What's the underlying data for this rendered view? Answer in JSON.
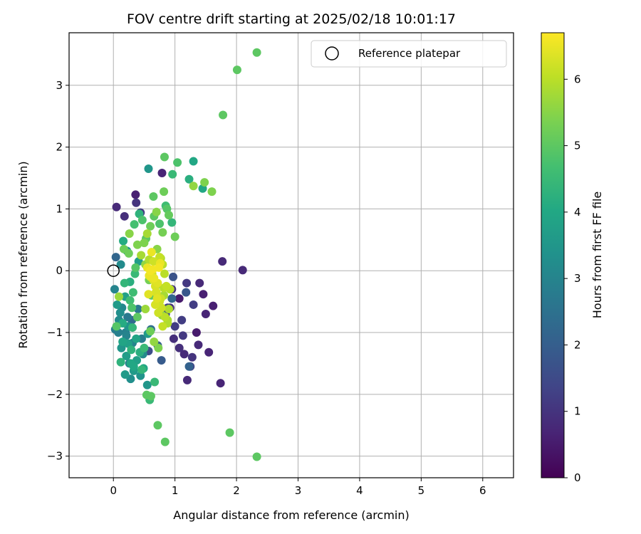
{
  "chart_data": {
    "type": "scatter",
    "title": "FOV centre drift starting at 2025/02/18 10:01:17",
    "xlabel": "Angular distance from reference (arcmin)",
    "ylabel": "Rotation from reference (arcmin)",
    "xlim": [
      -0.72,
      6.5
    ],
    "ylim": [
      -3.35,
      3.85
    ],
    "xticks": [
      0,
      1,
      2,
      3,
      4,
      5,
      6
    ],
    "yticks": [
      -3,
      -2,
      -1,
      0,
      1,
      2,
      3
    ],
    "grid": true,
    "legend": {
      "position": "top-right",
      "entries": [
        "Reference platepar"
      ]
    },
    "colorbar": {
      "label": "Hours from first FF file",
      "colormap": "viridis",
      "range": [
        0,
        6.7
      ],
      "ticks": [
        0,
        1,
        2,
        3,
        4,
        5,
        6
      ]
    },
    "reference_point": {
      "x": 0,
      "y": 0
    },
    "series": [
      {
        "x": [
          2.33,
          2.01,
          1.78,
          0.83,
          1.3,
          1.04,
          0.96,
          0.57,
          0.61,
          1.48,
          1.23,
          1.3,
          1.6,
          1.45,
          0.65,
          0.87,
          0.82,
          1.89,
          2.33,
          0.72,
          0.84,
          0.54,
          0.59,
          0.67,
          0.05,
          0.18,
          0.36,
          0.37,
          0.44,
          0.79,
          1.77,
          2.1,
          1.74,
          1.2,
          1.25,
          0.95,
          1.07,
          1.4,
          1.46,
          1.5,
          0.92,
          1.0,
          1.35,
          1.38,
          1.55,
          1.62,
          1.15,
          1.28,
          0.98,
          1.11,
          1.19,
          0.3,
          0.46,
          0.57,
          0.78,
          0.26,
          0.48,
          0.4,
          0.61,
          0.72,
          0.2,
          0.31,
          0.85,
          0.95,
          1.18,
          1.23,
          1.07,
          1.13,
          0.88,
          0.97,
          1.3,
          0.04,
          0.02,
          0.06,
          0.09,
          0.03,
          0.13,
          0.15,
          0.21,
          0.24,
          0.28,
          0.33,
          0.11,
          0.19,
          0.27,
          0.35,
          0.41,
          0.16,
          0.22,
          0.08,
          0.14,
          0.29,
          0.38,
          0.44,
          0.49,
          0.32,
          0.36,
          0.25,
          0.18,
          0.12,
          0.23,
          0.17,
          0.26,
          0.34,
          0.42,
          0.47,
          0.53,
          0.39,
          0.45,
          0.52,
          0.58,
          0.62,
          0.27,
          0.31,
          0.37,
          0.43,
          0.21,
          0.3,
          0.39,
          0.5,
          0.56,
          0.09,
          0.15,
          0.24,
          0.33,
          0.46,
          0.55,
          0.05,
          0.12,
          0.19,
          0.28,
          0.5,
          0.55,
          0.6,
          0.66,
          0.7,
          0.75,
          0.8,
          0.85,
          0.9,
          0.95,
          1.0,
          0.58,
          0.63,
          0.69,
          0.74,
          0.79,
          0.88,
          0.52,
          0.71,
          0.77,
          0.6,
          0.66,
          0.82,
          0.92,
          0.73,
          0.55,
          0.6,
          0.65,
          0.7,
          0.75,
          0.8,
          0.68,
          0.72,
          0.77,
          0.62,
          0.83,
          0.74,
          0.65,
          0.86,
          0.58,
          0.69,
          0.78,
          0.64,
          0.71,
          0.82,
          0.76,
          0.6,
          0.68,
          0.75,
          0.84,
          0.9,
          0.57,
          0.66,
          0.73,
          0.8,
          0.88
        ],
        "y": [
          3.53,
          3.25,
          2.52,
          1.84,
          1.77,
          1.75,
          1.56,
          1.65,
          -2.03,
          1.43,
          1.48,
          1.37,
          1.28,
          1.33,
          1.2,
          1.0,
          1.28,
          -2.62,
          -3.01,
          -2.5,
          -2.77,
          -2.01,
          -2.09,
          -1.8,
          1.03,
          0.88,
          1.23,
          1.1,
          0.94,
          1.58,
          0.15,
          0.01,
          -1.82,
          -1.77,
          -1.55,
          -0.3,
          -0.45,
          -0.2,
          -0.38,
          -0.7,
          -0.6,
          -0.9,
          -1.0,
          -1.2,
          -1.32,
          -0.57,
          -1.35,
          -1.4,
          -1.1,
          -0.8,
          -0.2,
          -0.8,
          -1.1,
          -1.3,
          -1.45,
          -1.5,
          -1.35,
          -0.62,
          -0.95,
          -1.21,
          -1.0,
          -1.17,
          -0.7,
          -0.45,
          -0.35,
          -1.55,
          -1.25,
          -1.05,
          -0.6,
          -0.1,
          -0.55,
          0.22,
          -0.3,
          -0.55,
          -0.8,
          -0.95,
          -1.25,
          -1.15,
          -1.05,
          -0.9,
          -1.5,
          -1.62,
          -0.68,
          -0.42,
          -0.18,
          -0.05,
          0.15,
          0.48,
          0.32,
          -1.0,
          -0.6,
          -1.28,
          -1.45,
          -1.7,
          -1.58,
          -0.35,
          0.05,
          0.28,
          -0.2,
          0.1,
          -0.75,
          0.35,
          0.6,
          0.75,
          0.92,
          0.82,
          0.52,
          0.42,
          0.25,
          0.1,
          -0.15,
          -0.4,
          -0.48,
          -0.92,
          -1.1,
          -1.32,
          -1.38,
          -0.6,
          -0.75,
          -1.25,
          -1.02,
          -0.42,
          -0.85,
          -1.18,
          -1.55,
          -1.6,
          -1.85,
          -0.9,
          -1.48,
          -1.68,
          -1.75,
          0.45,
          0.6,
          0.72,
          0.88,
          0.95,
          0.76,
          0.62,
          1.05,
          0.9,
          0.78,
          0.55,
          0.18,
          -0.05,
          -0.25,
          -0.5,
          -0.72,
          -0.85,
          -0.62,
          0.35,
          0.2,
          -0.98,
          -1.15,
          -0.4,
          -0.3,
          -1.25,
          0.05,
          -0.1,
          0.15,
          -0.35,
          0.22,
          0.1,
          -0.55,
          -0.2,
          -0.45,
          0.3,
          -0.05,
          0.05,
          -0.15,
          -0.25,
          -0.08,
          -0.35,
          -0.6,
          0.02,
          -0.45,
          -0.28,
          0.12,
          0.0,
          -0.25,
          -0.5,
          -0.75,
          -0.62,
          -0.38,
          -0.12,
          -0.68,
          -0.9,
          -0.8
        ],
        "c": [
          5.0,
          5.0,
          5.0,
          5.0,
          4.0,
          4.8,
          4.5,
          3.5,
          5.0,
          5.4,
          4.2,
          5.6,
          5.4,
          4.0,
          5.0,
          4.9,
          5.2,
          5.0,
          5.0,
          5.0,
          5.0,
          5.0,
          4.5,
          4.5,
          0.8,
          0.9,
          0.6,
          1.0,
          1.1,
          0.7,
          0.8,
          0.8,
          0.7,
          0.8,
          1.4,
          1.0,
          0.5,
          0.8,
          0.6,
          0.7,
          0.9,
          1.2,
          0.5,
          0.8,
          0.7,
          0.6,
          0.8,
          1.0,
          0.9,
          1.2,
          1.1,
          2.3,
          2.8,
          1.6,
          1.9,
          2.6,
          3.2,
          2.7,
          2.4,
          2.0,
          2.9,
          3.0,
          1.5,
          2.2,
          1.8,
          2.1,
          0.9,
          1.1,
          1.3,
          1.7,
          1.2,
          2.2,
          3.0,
          3.6,
          3.2,
          2.8,
          3.5,
          3.9,
          3.0,
          3.4,
          4.0,
          3.6,
          3.3,
          3.8,
          4.2,
          4.5,
          3.7,
          4.1,
          3.5,
          2.9,
          3.1,
          4.3,
          3.8,
          3.4,
          4.0,
          4.6,
          4.9,
          5.2,
          4.4,
          3.2,
          2.7,
          5.2,
          5.5,
          4.7,
          4.3,
          4.8,
          5.0,
          5.4,
          5.8,
          5.6,
          5.3,
          5.0,
          4.6,
          4.4,
          3.9,
          4.2,
          3.7,
          4.8,
          5.0,
          4.5,
          3.6,
          5.7,
          4.1,
          3.8,
          4.0,
          4.4,
          3.5,
          4.9,
          4.3,
          3.6,
          3.3,
          5.4,
          5.8,
          5.2,
          5.0,
          5.5,
          4.8,
          5.3,
          4.6,
          5.1,
          4.4,
          5.2,
          5.9,
          6.1,
          5.8,
          6.0,
          5.6,
          5.9,
          5.7,
          5.5,
          5.9,
          5.2,
          5.6,
          5.8,
          6.0,
          5.4,
          6.5,
          6.4,
          6.2,
          6.3,
          6.1,
          6.0,
          6.3,
          6.4,
          6.2,
          6.5,
          6.0,
          6.6,
          6.4,
          6.1,
          6.5,
          6.3,
          6.2,
          6.6,
          6.4,
          6.0,
          6.5,
          6.6,
          6.3,
          6.2,
          6.0,
          5.9,
          6.4,
          6.5,
          6.2,
          6.1,
          5.8
        ]
      }
    ]
  }
}
